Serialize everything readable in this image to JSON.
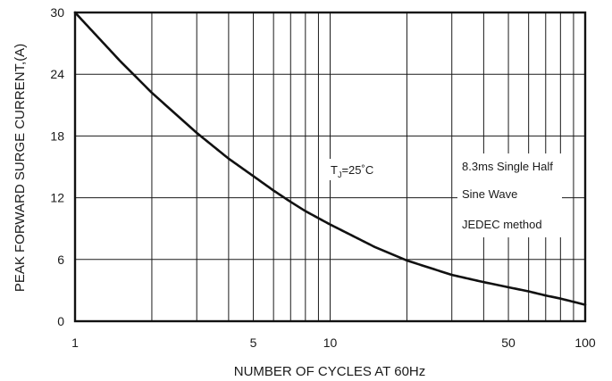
{
  "chart_data": {
    "type": "line",
    "x_scale": "log",
    "grid": true,
    "xlabel": "NUMBER OF CYCLES AT 60Hz",
    "ylabel": "PEAK FORWARD SURGE CURRENT,(A)",
    "xlim": [
      1,
      100
    ],
    "ylim": [
      0,
      30
    ],
    "x_ticks": [
      {
        "value": 1,
        "label": "1"
      },
      {
        "value": 5,
        "label": "5"
      },
      {
        "value": 10,
        "label": "10"
      },
      {
        "value": 50,
        "label": "50"
      },
      {
        "value": 100,
        "label": "100"
      }
    ],
    "y_ticks": [
      {
        "value": 0,
        "label": "0"
      },
      {
        "value": 6,
        "label": "6"
      },
      {
        "value": 12,
        "label": "12"
      },
      {
        "value": 18,
        "label": "18"
      },
      {
        "value": 24,
        "label": "24"
      },
      {
        "value": 30,
        "label": "30"
      }
    ],
    "series": [
      {
        "x": [
          1,
          1.5,
          2,
          3,
          4,
          5,
          6,
          7,
          8,
          10,
          15,
          20,
          30,
          40,
          50,
          60,
          70,
          80,
          100
        ],
        "y": [
          30,
          25.3,
          22.2,
          18.3,
          15.8,
          14.1,
          12.7,
          11.6,
          10.7,
          9.4,
          7.2,
          5.9,
          4.5,
          3.8,
          3.3,
          2.9,
          2.5,
          2.2,
          1.6
        ]
      }
    ],
    "annotations": {
      "tj": {
        "main": "T",
        "sub": "J",
        "tail": "=25˚C"
      },
      "method": [
        "8.3ms Single Half",
        "Sine Wave",
        "JEDEC method"
      ]
    },
    "colors": {
      "line": "#111111",
      "grid": "#1a1a1a",
      "frame": "#111111"
    }
  }
}
